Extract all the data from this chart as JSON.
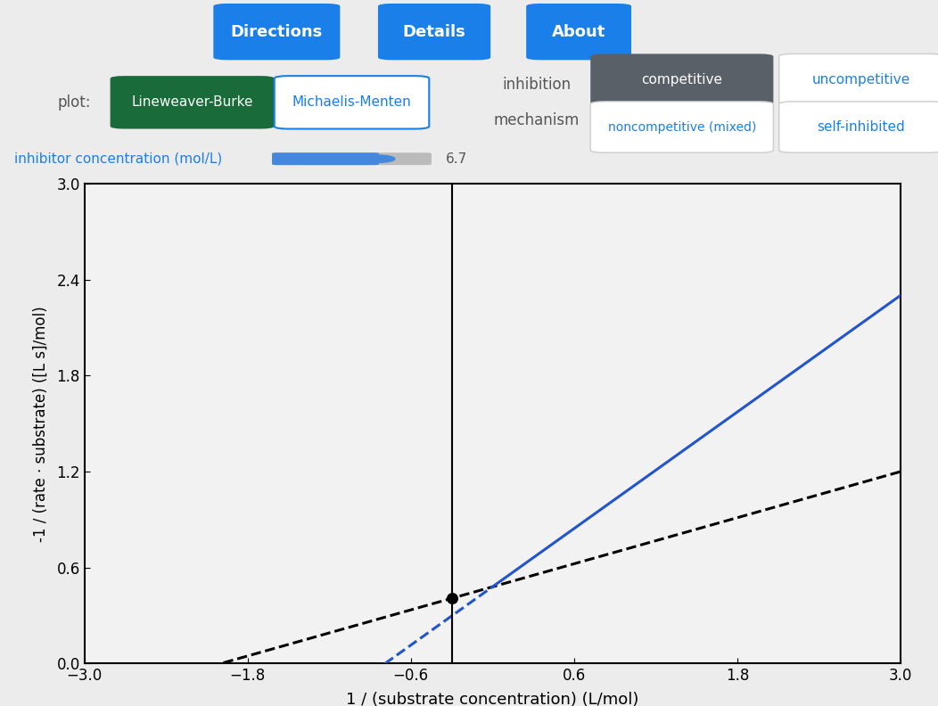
{
  "xlim": [
    -3.0,
    3.0
  ],
  "ylim": [
    0.0,
    3.0
  ],
  "xlabel": "1 / (substrate concentration) (L/mol)",
  "ylabel": "-1 / (rate · substrate) ([L s]/mol)",
  "xticks": [
    -3.0,
    -1.8,
    -0.6,
    0.6,
    1.8,
    3.0
  ],
  "yticks": [
    0.0,
    0.6,
    1.2,
    1.8,
    2.4,
    3.0
  ],
  "bg_color": "#ececec",
  "plot_bg_color": "#f2f2f2",
  "no_inhibitor_x_intercept": -2.0,
  "no_inhibitor_y_intercept": 0.48,
  "no_inhibitor_color": "black",
  "no_inhibitor_style": "--",
  "no_inhibitor_linewidth": 2.2,
  "inhibitor_y_intercept": 0.48,
  "inhibitor_slope": 0.607,
  "inhibitor_color": "#2255cc",
  "inhibitor_solid_linewidth": 2.2,
  "inhibitor_dashed_linewidth": 2.2,
  "vertical_line_x": -0.3,
  "dot_size": 70,
  "dot_color": "black",
  "btn_blue": "#1a7fe8",
  "btn_green_bg": "#1a6b3a",
  "btn_green_fg": "white",
  "btn_mm_bg": "white",
  "btn_mm_fg": "#1a7fe8",
  "btn_competitive_bg": "#5a6068",
  "btn_competitive_fg": "white",
  "btn_other_bg": "white",
  "btn_other_fg": "#1a7fe8",
  "slider_label": "inhibitor concentration (mol/L)",
  "slider_value": "6.7",
  "slider_color": "#4488dd",
  "label_color": "#555555",
  "plot_ylabel": "-1 / (rate ∙ substrate) ([L s]/mol)"
}
